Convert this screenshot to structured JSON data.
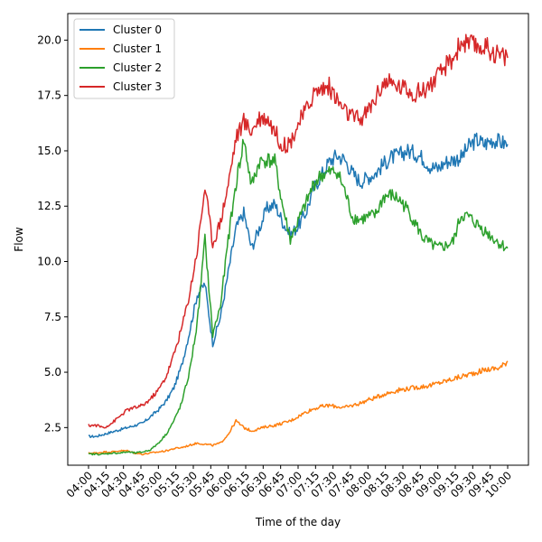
{
  "chart_data": {
    "type": "line",
    "xlabel": "Time of the day",
    "ylabel": "Flow",
    "x_ticks": [
      "04:00",
      "04:15",
      "04:30",
      "04:45",
      "05:00",
      "05:15",
      "05:30",
      "05:45",
      "06:00",
      "06:15",
      "06:30",
      "06:45",
      "07:00",
      "07:15",
      "07:30",
      "07:45",
      "08:00",
      "08:15",
      "08:30",
      "08:45",
      "09:00",
      "09:15",
      "09:30",
      "09:45",
      "10:00"
    ],
    "y_ticks": [
      "2.5",
      "5.0",
      "7.5",
      "10.0",
      "12.5",
      "15.0",
      "17.5",
      "20.0"
    ],
    "y_tick_values": [
      2.5,
      5.0,
      7.5,
      10.0,
      12.5,
      15.0,
      17.5,
      20.0
    ],
    "ylim": [
      0.8,
      21.2
    ],
    "grid": false,
    "legend_position": "top-left",
    "series": [
      {
        "name": "Cluster 0",
        "color": "#1f77b4",
        "values": [
          2.1,
          2.1,
          2.2,
          2.3,
          2.4,
          2.5,
          2.6,
          2.7,
          3.0,
          3.3,
          3.7,
          4.3,
          5.3,
          6.8,
          8.5,
          9.0,
          6.3,
          7.5,
          9.5,
          11.5,
          12.2,
          10.6,
          11.5,
          12.4,
          12.6,
          11.8,
          11.2,
          11.6,
          12.2,
          13.3,
          13.9,
          14.5,
          14.8,
          14.6,
          14.0,
          13.6,
          13.8,
          14.0,
          14.4,
          14.7,
          14.8,
          15.0,
          14.9,
          14.7,
          14.3,
          14.2,
          14.5,
          14.6,
          14.7,
          15.2,
          15.5,
          15.3,
          15.5,
          15.4,
          15.3
        ]
      },
      {
        "name": "Cluster 1",
        "color": "#ff7f0e",
        "values": [
          1.35,
          1.35,
          1.4,
          1.4,
          1.45,
          1.45,
          1.35,
          1.3,
          1.35,
          1.4,
          1.45,
          1.55,
          1.6,
          1.7,
          1.8,
          1.75,
          1.7,
          1.8,
          2.2,
          2.8,
          2.5,
          2.35,
          2.45,
          2.55,
          2.6,
          2.7,
          2.8,
          3.0,
          3.2,
          3.35,
          3.45,
          3.5,
          3.45,
          3.4,
          3.5,
          3.6,
          3.75,
          3.85,
          4.0,
          4.1,
          4.2,
          4.25,
          4.3,
          4.35,
          4.4,
          4.5,
          4.6,
          4.7,
          4.8,
          4.9,
          5.0,
          5.1,
          5.15,
          5.2,
          5.5
        ]
      },
      {
        "name": "Cluster 2",
        "color": "#2ca02c",
        "values": [
          1.3,
          1.3,
          1.3,
          1.35,
          1.35,
          1.4,
          1.35,
          1.4,
          1.5,
          1.8,
          2.2,
          2.8,
          3.6,
          5.0,
          7.2,
          11.0,
          6.7,
          8.0,
          11.0,
          13.5,
          15.5,
          13.4,
          14.5,
          14.6,
          14.5,
          12.5,
          11.0,
          11.8,
          12.6,
          13.5,
          13.9,
          14.0,
          14.1,
          13.2,
          12.0,
          11.9,
          12.0,
          12.1,
          12.9,
          13.0,
          12.8,
          12.4,
          11.8,
          11.1,
          10.8,
          10.6,
          10.7,
          10.9,
          12.1,
          12.0,
          11.7,
          11.4,
          11.1,
          10.8,
          10.6
        ]
      },
      {
        "name": "Cluster 3",
        "color": "#d62728",
        "values": [
          2.6,
          2.6,
          2.5,
          2.7,
          3.0,
          3.3,
          3.4,
          3.5,
          3.8,
          4.2,
          4.8,
          5.8,
          7.0,
          8.5,
          10.5,
          13.4,
          10.8,
          11.8,
          13.5,
          15.6,
          16.3,
          15.9,
          16.5,
          16.5,
          15.9,
          15.2,
          15.4,
          16.2,
          16.8,
          17.6,
          17.8,
          17.9,
          17.3,
          16.8,
          16.5,
          16.4,
          16.8,
          17.4,
          18.1,
          18.0,
          17.9,
          17.8,
          17.6,
          17.7,
          18.0,
          18.3,
          18.8,
          19.2,
          19.9,
          19.8,
          19.7,
          19.7,
          19.5,
          19.3,
          19.2
        ]
      }
    ]
  }
}
